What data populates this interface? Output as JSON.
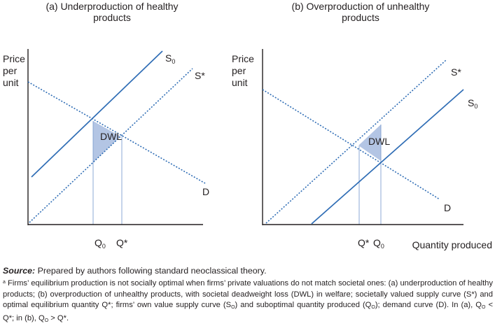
{
  "colors": {
    "supply": "#2f6db5",
    "social": "#2f6db5",
    "demand": "#2f6db5",
    "dwl_fill": "#b3c5e4",
    "axis": "#231f20",
    "guide": "#7f9fd0"
  },
  "panel_a": {
    "title_line1": "(a) Underproduction of healthy",
    "title_line2": "products",
    "ylabel_line1": "Price",
    "ylabel_line2": "per",
    "ylabel_line3": "unit",
    "s0": "S",
    "s0_sub": "0",
    "sstar": "S*",
    "d": "D",
    "dwl": "DWL",
    "q0": "Q",
    "q0_sub": "0",
    "qstar": "Q*"
  },
  "panel_b": {
    "title_line1": "(b) Overproduction of unhealthy",
    "title_line2": "products",
    "ylabel_line1": "Price",
    "ylabel_line2": "per",
    "ylabel_line3": "unit",
    "s0": "S",
    "s0_sub": "0",
    "sstar": "S*",
    "d": "D",
    "dwl": "DWL",
    "qstar": "Q*",
    "q0": "Q",
    "q0_sub": "0",
    "xlabel": "Quantity produced"
  },
  "source": {
    "label": "Source:",
    "text": " Prepared by authors following standard neoclassical theory."
  },
  "note": {
    "marker": "a",
    "p1": " Firms’ equilibrium production is not socially optimal when firms’ private valuations do not match societal ones: (a) underproduction of healthy products; (b) overproduction of unhealthy products, with societal deadweight loss (DWL) in welfare; societally valued supply curve (S*) and optimal equilibrium quantity Q*; firms’ own value supply curve (S",
    "p1_sub": "O",
    "p2": ") and suboptimal quantity produced (Q",
    "p2_sub": "O",
    "p3": "); demand curve (D). In (a), Q",
    "p3_sub": "O",
    "p4": " < Q*; in (b), Q",
    "p4_sub": "O",
    "p5": " > Q*."
  }
}
